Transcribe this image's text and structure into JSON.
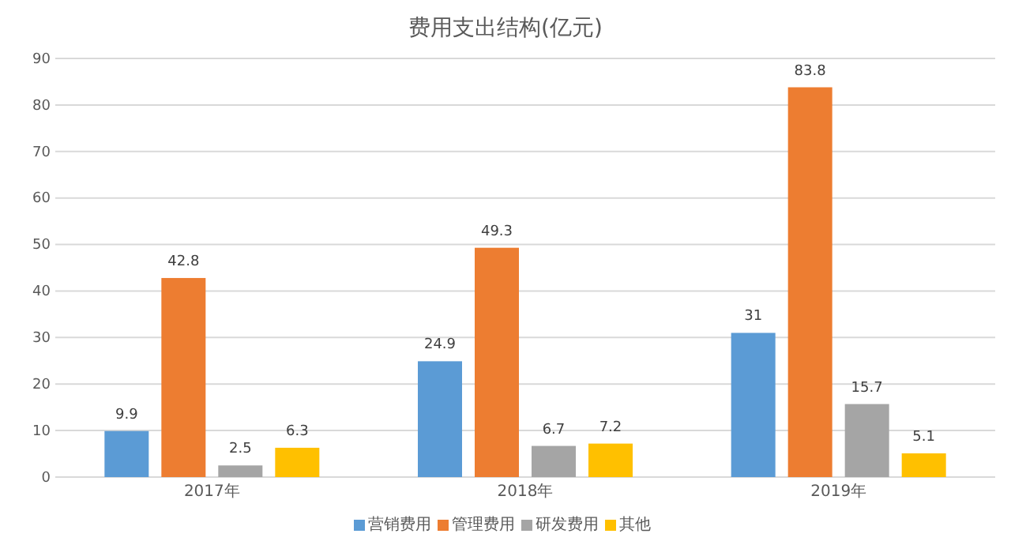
{
  "chart_data": {
    "type": "bar",
    "title": "费用支出结构(亿元)",
    "categories": [
      "2017年",
      "2018年",
      "2019年"
    ],
    "series": [
      {
        "name": "营销费用",
        "color": "#5b9bd5",
        "values": [
          9.9,
          24.9,
          31
        ]
      },
      {
        "name": "管理费用",
        "color": "#ed7d31",
        "values": [
          42.8,
          49.3,
          83.8
        ]
      },
      {
        "name": "研发费用",
        "color": "#a5a5a5",
        "values": [
          2.5,
          6.7,
          15.7
        ]
      },
      {
        "name": "其他",
        "color": "#ffc000",
        "values": [
          6.3,
          7.2,
          5.1
        ]
      }
    ],
    "ylim": [
      0,
      90
    ],
    "yticks": [
      0,
      10,
      20,
      30,
      40,
      50,
      60,
      70,
      80,
      90
    ],
    "grid": "y",
    "legend": "bottom",
    "data_labels": true
  }
}
